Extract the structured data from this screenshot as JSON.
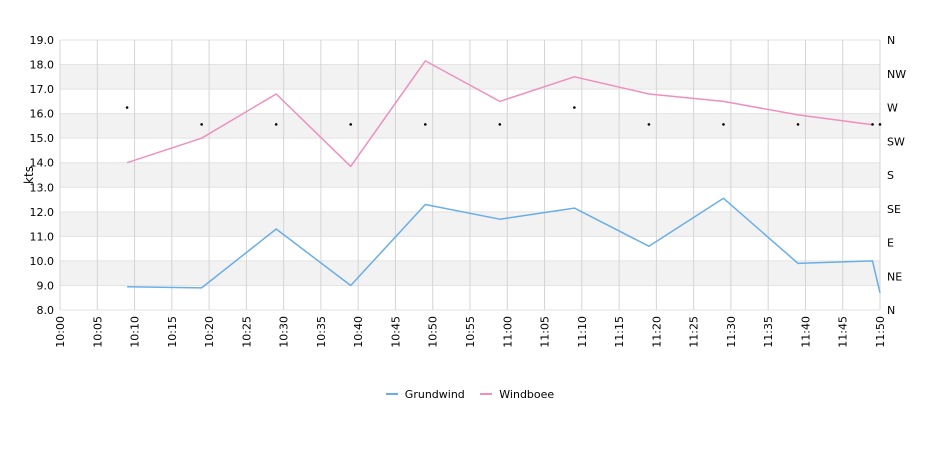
{
  "chart_data": {
    "type": "line",
    "ylabel": "kts",
    "ylim": [
      8.0,
      19.0
    ],
    "y_ticks": [
      "8.0",
      "9.0",
      "10.0",
      "11.0",
      "12.0",
      "13.0",
      "14.0",
      "15.0",
      "16.0",
      "17.0",
      "18.0",
      "19.0"
    ],
    "x_ticks": [
      "10:00",
      "10:05",
      "10:10",
      "10:15",
      "10:20",
      "10:25",
      "10:30",
      "10:35",
      "10:40",
      "10:45",
      "10:50",
      "10:55",
      "11:00",
      "11:05",
      "11:10",
      "11:15",
      "11:20",
      "11:25",
      "11:30",
      "11:35",
      "11:40",
      "11:45",
      "11:50"
    ],
    "direction_ticks": [
      "N",
      "NE",
      "E",
      "SE",
      "S",
      "SW",
      "W",
      "NW",
      "N"
    ],
    "grid": true,
    "legend_position": "bottom",
    "series": [
      {
        "name": "Grundwind",
        "color": "#6aaee8",
        "x": [
          "10:09",
          "10:19",
          "10:29",
          "10:39",
          "10:49",
          "10:59",
          "11:09",
          "11:19",
          "11:29",
          "11:39",
          "11:49",
          "11:50"
        ],
        "values": [
          8.95,
          8.9,
          11.3,
          9.0,
          12.3,
          11.7,
          12.15,
          10.6,
          12.55,
          9.9,
          10.0,
          8.7
        ]
      },
      {
        "name": "Windboee",
        "color": "#ee8fbf",
        "x": [
          "10:09",
          "10:19",
          "10:29",
          "10:39",
          "10:49",
          "10:59",
          "11:09",
          "11:19",
          "11:29",
          "11:39",
          "11:49"
        ],
        "values": [
          14.0,
          15.0,
          16.8,
          13.85,
          18.15,
          16.5,
          17.5,
          16.8,
          16.5,
          15.95,
          15.55
        ]
      }
    ],
    "direction_points": {
      "x": [
        "10:09",
        "10:19",
        "10:29",
        "10:39",
        "10:49",
        "10:59",
        "11:09",
        "11:19",
        "11:29",
        "11:39",
        "11:49",
        "11:50"
      ],
      "values_deg": [
        270,
        247.5,
        247.5,
        247.5,
        247.5,
        247.5,
        270,
        247.5,
        247.5,
        247.5,
        247.5,
        247.5
      ]
    }
  }
}
